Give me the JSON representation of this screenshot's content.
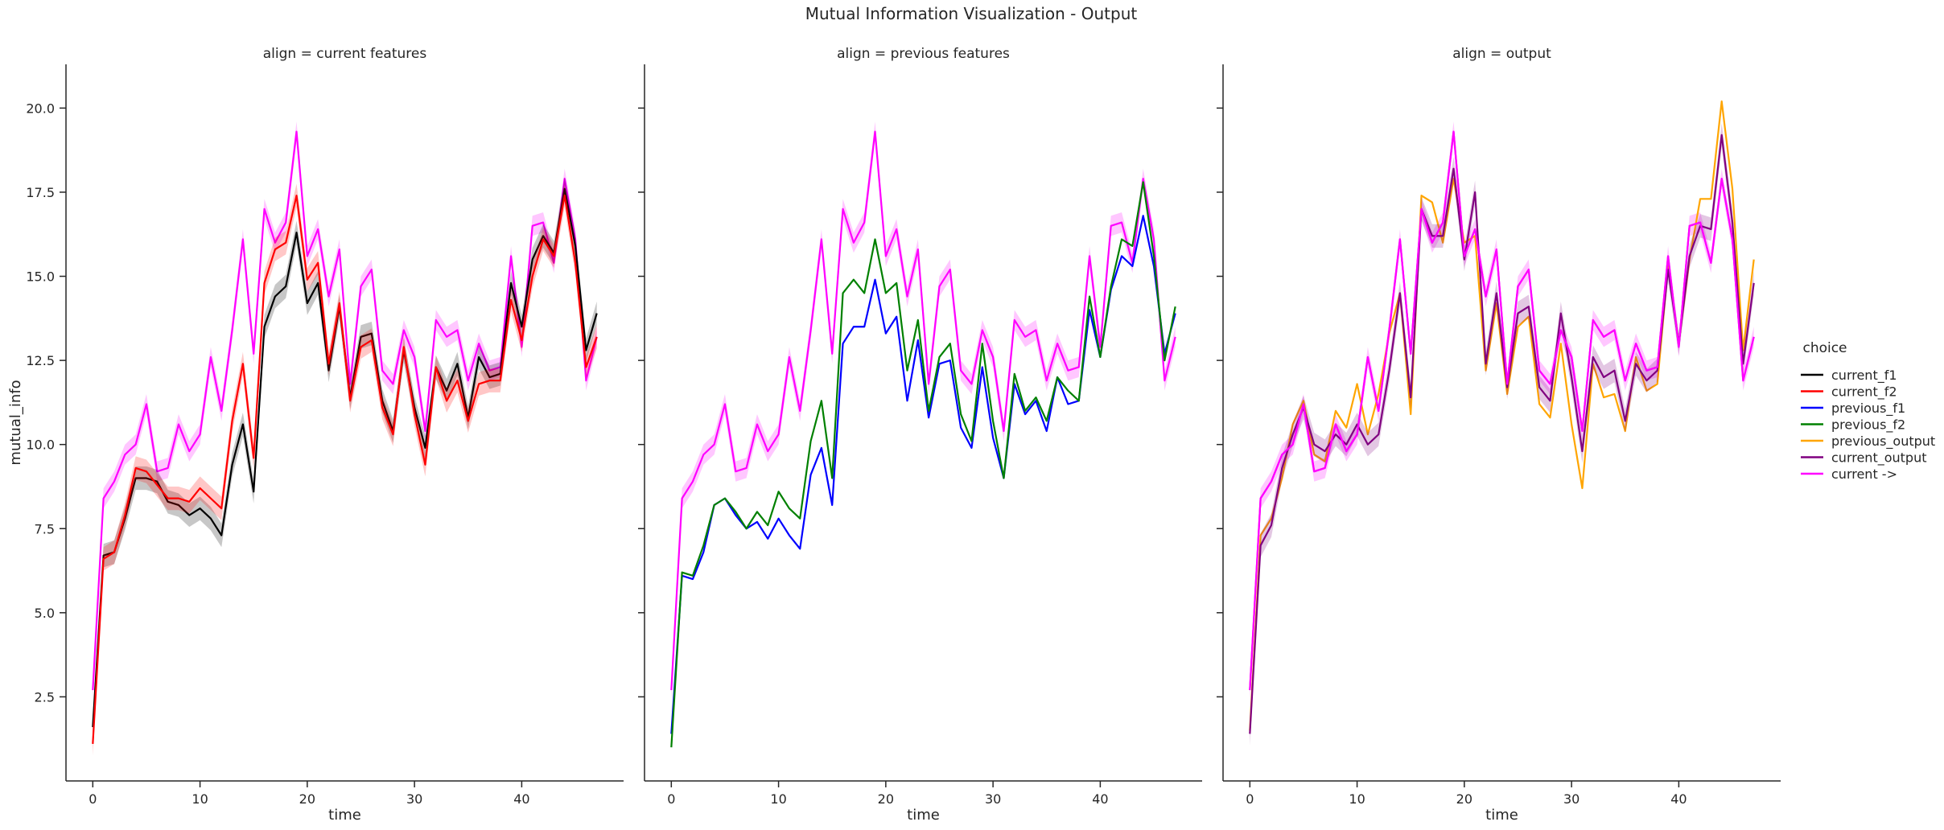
{
  "figure": {
    "title": "Mutual Information Visualization - Output"
  },
  "legend": {
    "title": "choice",
    "entries": [
      {
        "name": "current_f1",
        "color": "#000000"
      },
      {
        "name": "current_f2",
        "color": "#ff0000"
      },
      {
        "name": "previous_f1",
        "color": "#0000ff"
      },
      {
        "name": "previous_f2",
        "color": "#008000"
      },
      {
        "name": "previous_output",
        "color": "#ffa500"
      },
      {
        "name": "current_output",
        "color": "#800080"
      },
      {
        "name": "current ->",
        "color": "#ff00ff"
      }
    ]
  },
  "chart_data": [
    {
      "type": "line",
      "title": "align = current features",
      "xlabel": "time",
      "ylabel": "mutual_info",
      "xlim": [
        -2.5,
        49.5
      ],
      "ylim": [
        0,
        21.3
      ],
      "xticks": [
        0,
        10,
        20,
        30,
        40
      ],
      "yticks": [
        2.5,
        5.0,
        7.5,
        10.0,
        12.5,
        15.0,
        17.5,
        20.0
      ],
      "grid": false,
      "series": [
        {
          "name": "current ->",
          "color": "#ff00ff",
          "band": 0.3,
          "values": [
            2.7,
            8.4,
            8.9,
            9.7,
            10.0,
            11.2,
            9.2,
            9.3,
            10.6,
            9.8,
            10.3,
            12.6,
            11.0,
            13.4,
            16.1,
            12.7,
            17.0,
            16.0,
            16.6,
            19.3,
            15.6,
            16.4,
            14.4,
            15.8,
            11.8,
            14.7,
            15.2,
            12.2,
            11.8,
            13.4,
            12.6,
            10.4,
            13.7,
            13.2,
            13.4,
            11.9,
            13.0,
            12.2,
            12.3,
            15.6,
            12.9,
            16.5,
            16.6,
            15.4,
            17.9,
            16.1,
            11.9,
            13.2
          ]
        },
        {
          "name": "current_f1",
          "color": "#000000",
          "band": 0.35,
          "values": [
            1.6,
            6.7,
            6.8,
            7.8,
            9.0,
            9.0,
            8.9,
            8.3,
            8.2,
            7.9,
            8.1,
            7.8,
            7.3,
            9.4,
            10.6,
            8.6,
            13.5,
            14.4,
            14.7,
            16.3,
            14.2,
            14.8,
            12.2,
            14.1,
            11.4,
            13.2,
            13.3,
            11.3,
            10.4,
            12.8,
            11.1,
            9.9,
            12.3,
            11.6,
            12.4,
            10.8,
            12.6,
            12.0,
            12.1,
            14.8,
            13.5,
            15.5,
            16.2,
            15.7,
            17.6,
            15.9,
            12.8,
            13.9
          ]
        },
        {
          "name": "current_f2",
          "color": "#ff0000",
          "band": 0.35,
          "values": [
            1.1,
            6.6,
            6.8,
            7.9,
            9.3,
            9.2,
            8.8,
            8.4,
            8.4,
            8.3,
            8.7,
            8.4,
            8.1,
            10.7,
            12.4,
            9.6,
            14.8,
            15.8,
            16.0,
            17.4,
            14.9,
            15.4,
            12.4,
            14.2,
            11.3,
            12.9,
            13.1,
            11.1,
            10.3,
            12.9,
            10.9,
            9.4,
            12.3,
            11.3,
            11.9,
            10.7,
            11.8,
            11.9,
            11.9,
            14.3,
            13.1,
            15.0,
            16.1,
            15.6,
            17.4,
            15.4,
            12.3,
            13.2
          ]
        }
      ]
    },
    {
      "type": "line",
      "title": "align = previous features",
      "xlabel": "time",
      "ylabel": "",
      "xlim": [
        -2.5,
        49.5
      ],
      "ylim": [
        0,
        21.3
      ],
      "xticks": [
        0,
        10,
        20,
        30,
        40
      ],
      "yticks": [
        2.5,
        5.0,
        7.5,
        10.0,
        12.5,
        15.0,
        17.5,
        20.0
      ],
      "grid": false,
      "series": [
        {
          "name": "current ->",
          "color": "#ff00ff",
          "band": 0.3,
          "values": [
            2.7,
            8.4,
            8.9,
            9.7,
            10.0,
            11.2,
            9.2,
            9.3,
            10.6,
            9.8,
            10.3,
            12.6,
            11.0,
            13.4,
            16.1,
            12.7,
            17.0,
            16.0,
            16.6,
            19.3,
            15.6,
            16.4,
            14.4,
            15.8,
            11.8,
            14.7,
            15.2,
            12.2,
            11.8,
            13.4,
            12.6,
            10.4,
            13.7,
            13.2,
            13.4,
            11.9,
            13.0,
            12.2,
            12.3,
            15.6,
            12.9,
            16.5,
            16.6,
            15.4,
            17.9,
            16.1,
            11.9,
            13.2
          ]
        },
        {
          "name": "previous_f1",
          "color": "#0000ff",
          "band": 0,
          "values": [
            1.4,
            6.1,
            6.0,
            6.8,
            8.2,
            8.4,
            7.9,
            7.5,
            7.7,
            7.2,
            7.8,
            7.3,
            6.9,
            9.1,
            9.9,
            8.2,
            13.0,
            13.5,
            13.5,
            14.9,
            13.3,
            13.8,
            11.3,
            13.1,
            10.8,
            12.4,
            12.5,
            10.5,
            9.9,
            12.3,
            10.2,
            9.0,
            11.8,
            10.9,
            11.3,
            10.4,
            12.0,
            11.2,
            11.3,
            14.0,
            12.6,
            14.6,
            15.6,
            15.3,
            16.8,
            15.3,
            12.7,
            13.9
          ]
        },
        {
          "name": "previous_f2",
          "color": "#008000",
          "band": 0,
          "values": [
            1.0,
            6.2,
            6.1,
            7.0,
            8.2,
            8.4,
            8.0,
            7.5,
            8.0,
            7.6,
            8.6,
            8.1,
            7.8,
            10.1,
            11.3,
            9.0,
            14.5,
            14.9,
            14.5,
            16.1,
            14.5,
            14.8,
            12.2,
            13.7,
            11.0,
            12.6,
            13.0,
            10.9,
            10.1,
            13.0,
            10.7,
            9.0,
            12.1,
            11.0,
            11.4,
            10.7,
            12.0,
            11.6,
            11.3,
            14.4,
            12.6,
            14.7,
            16.1,
            15.9,
            17.8,
            15.6,
            12.5,
            14.1
          ]
        }
      ]
    },
    {
      "type": "line",
      "title": "align = output",
      "xlabel": "time",
      "ylabel": "",
      "xlim": [
        -2.5,
        49.5
      ],
      "ylim": [
        0,
        21.3
      ],
      "xticks": [
        0,
        10,
        20,
        30,
        40
      ],
      "yticks": [
        2.5,
        5.0,
        7.5,
        10.0,
        12.5,
        15.0,
        17.5,
        20.0
      ],
      "grid": false,
      "series": [
        {
          "name": "current ->",
          "color": "#ff00ff",
          "band": 0.3,
          "values": [
            2.7,
            8.4,
            8.9,
            9.7,
            10.0,
            11.2,
            9.2,
            9.3,
            10.6,
            9.8,
            10.3,
            12.6,
            11.0,
            13.4,
            16.1,
            12.7,
            17.0,
            16.0,
            16.6,
            19.3,
            15.6,
            16.4,
            14.4,
            15.8,
            11.8,
            14.7,
            15.2,
            12.2,
            11.8,
            13.4,
            12.6,
            10.4,
            13.7,
            13.2,
            13.4,
            11.9,
            13.0,
            12.2,
            12.3,
            15.6,
            12.9,
            16.5,
            16.6,
            15.4,
            17.9,
            16.1,
            11.9,
            13.2
          ]
        },
        {
          "name": "previous_output",
          "color": "#ffa500",
          "band": 0,
          "values": [
            1.5,
            7.3,
            7.8,
            9.0,
            10.6,
            11.3,
            9.7,
            9.5,
            11.0,
            10.5,
            11.8,
            10.3,
            11.5,
            13.3,
            14.5,
            10.9,
            17.4,
            17.2,
            16.0,
            17.9,
            16.0,
            16.2,
            12.2,
            14.2,
            11.5,
            13.5,
            13.8,
            11.2,
            10.8,
            13.0,
            10.6,
            8.7,
            12.4,
            11.4,
            11.5,
            10.4,
            12.6,
            11.6,
            11.8,
            15.3,
            13.0,
            15.5,
            17.3,
            17.3,
            20.2,
            17.6,
            12.8,
            15.5
          ]
        },
        {
          "name": "current_output",
          "color": "#800080",
          "band": 0.35,
          "values": [
            1.4,
            7.0,
            7.6,
            9.3,
            10.3,
            11.1,
            10.0,
            9.8,
            10.3,
            10.0,
            10.6,
            10.0,
            10.3,
            12.2,
            14.5,
            11.4,
            17.0,
            16.2,
            16.2,
            18.2,
            15.5,
            17.5,
            12.4,
            14.5,
            11.7,
            13.9,
            14.1,
            11.7,
            11.3,
            13.9,
            12.0,
            9.8,
            12.6,
            12.0,
            12.2,
            10.7,
            12.4,
            11.9,
            12.2,
            15.2,
            13.0,
            15.6,
            16.5,
            16.4,
            19.2,
            16.6,
            12.4,
            14.8
          ]
        },
        {
          "name": "current ->",
          "color": "#ff00ff",
          "band": 0,
          "overlay": true,
          "values": [
            2.7,
            8.4,
            8.9,
            9.7,
            10.0,
            11.2,
            9.2,
            9.3,
            10.6,
            9.8,
            10.3,
            12.6,
            11.0,
            13.4,
            16.1,
            12.7,
            17.0,
            16.0,
            16.6,
            19.3,
            15.6,
            16.4,
            14.4,
            15.8,
            11.8,
            14.7,
            15.2,
            12.2,
            11.8,
            13.4,
            12.6,
            10.4,
            13.7,
            13.2,
            13.4,
            11.9,
            13.0,
            12.2,
            12.3,
            15.6,
            12.9,
            16.5,
            16.6,
            15.4,
            17.9,
            16.1,
            11.9,
            13.2
          ]
        }
      ]
    }
  ]
}
